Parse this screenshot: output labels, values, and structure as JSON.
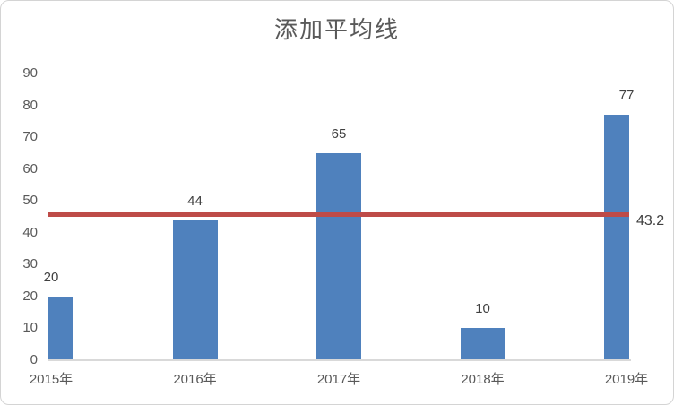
{
  "chart_data": {
    "type": "bar",
    "title": "添加平均线",
    "categories": [
      "2015年",
      "2016年",
      "2017年",
      "2018年",
      "2019年"
    ],
    "values": [
      20,
      44,
      65,
      10,
      77
    ],
    "data_labels": [
      "20",
      "44",
      "65",
      "10",
      "77"
    ],
    "average_line": {
      "value": 43.2,
      "label": "43.2",
      "color": "#be4b48"
    },
    "y_ticks": [
      0,
      10,
      20,
      30,
      40,
      50,
      60,
      70,
      80,
      90
    ],
    "ylim": [
      0,
      90
    ],
    "xlabel": "",
    "ylabel": "",
    "bar_color": "#4f81bd",
    "grid": false,
    "legend": "none",
    "axis_line_color": "#d9d9d9"
  }
}
